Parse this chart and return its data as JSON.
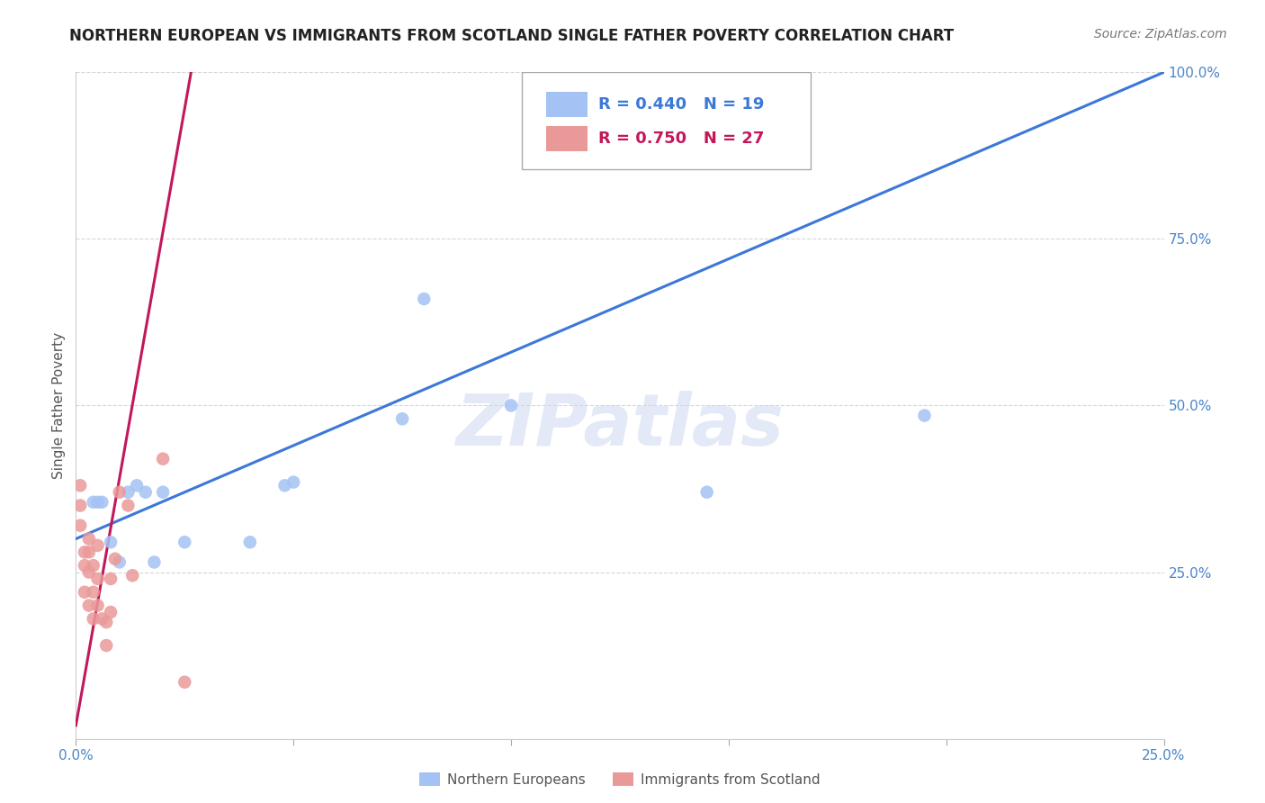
{
  "title": "NORTHERN EUROPEAN VS IMMIGRANTS FROM SCOTLAND SINGLE FATHER POVERTY CORRELATION CHART",
  "source": "Source: ZipAtlas.com",
  "ylabel": "Single Father Poverty",
  "xlim": [
    0.0,
    0.25
  ],
  "ylim": [
    0.0,
    1.0
  ],
  "xtick_positions": [
    0.0,
    0.05,
    0.1,
    0.15,
    0.2,
    0.25
  ],
  "xtick_labels": [
    "0.0%",
    "",
    "",
    "",
    "",
    "25.0%"
  ],
  "ytick_positions": [
    0.0,
    0.25,
    0.5,
    0.75,
    1.0
  ],
  "ytick_labels": [
    "",
    "25.0%",
    "50.0%",
    "75.0%",
    "100.0%"
  ],
  "blue_R": 0.44,
  "blue_N": 19,
  "pink_R": 0.75,
  "pink_N": 27,
  "blue_color": "#a4c2f4",
  "pink_color": "#ea9999",
  "blue_line_color": "#3c78d8",
  "pink_line_color": "#c2185b",
  "watermark_text": "ZIPatlas",
  "blue_points_x": [
    0.004,
    0.005,
    0.006,
    0.008,
    0.01,
    0.012,
    0.014,
    0.016,
    0.018,
    0.02,
    0.025,
    0.04,
    0.048,
    0.05,
    0.075,
    0.08,
    0.1,
    0.145,
    0.195
  ],
  "blue_points_y": [
    0.355,
    0.355,
    0.355,
    0.295,
    0.265,
    0.37,
    0.38,
    0.37,
    0.265,
    0.37,
    0.295,
    0.295,
    0.38,
    0.385,
    0.48,
    0.66,
    0.5,
    0.37,
    0.485
  ],
  "pink_points_x": [
    0.001,
    0.001,
    0.001,
    0.002,
    0.002,
    0.002,
    0.003,
    0.003,
    0.003,
    0.003,
    0.004,
    0.004,
    0.004,
    0.005,
    0.005,
    0.005,
    0.006,
    0.007,
    0.007,
    0.008,
    0.008,
    0.009,
    0.01,
    0.012,
    0.013,
    0.02,
    0.025
  ],
  "pink_points_y": [
    0.38,
    0.35,
    0.32,
    0.28,
    0.26,
    0.22,
    0.3,
    0.28,
    0.25,
    0.2,
    0.26,
    0.22,
    0.18,
    0.29,
    0.24,
    0.2,
    0.18,
    0.175,
    0.14,
    0.24,
    0.19,
    0.27,
    0.37,
    0.35,
    0.245,
    0.42,
    0.085
  ],
  "blue_trend_x": [
    0.0,
    0.25
  ],
  "blue_trend_y": [
    0.3,
    1.0
  ],
  "pink_trend_x": [
    0.0,
    0.027
  ],
  "pink_trend_y": [
    0.02,
    1.02
  ],
  "background_color": "#ffffff",
  "grid_color": "#cccccc",
  "title_fontsize": 12,
  "axis_fontsize": 11,
  "legend_fontsize": 13,
  "source_fontsize": 10
}
